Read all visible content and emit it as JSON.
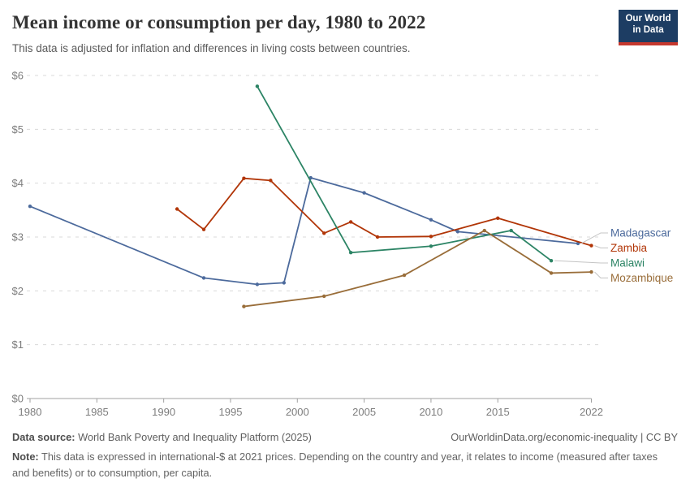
{
  "header": {
    "title": "Mean income or consumption per day, 1980 to 2022",
    "subtitle": "This data is adjusted for inflation and differences in living costs between countries.",
    "logo": {
      "line1": "Our World",
      "line2": "in Data",
      "bg_color": "#1d3d63",
      "bar_color": "#c5382e"
    }
  },
  "chart_data": {
    "type": "line",
    "title": "Mean income or consumption per day, 1980 to 2022",
    "xlabel": "",
    "ylabel": "",
    "xlim": [
      1980,
      2022
    ],
    "ylim": [
      0,
      6
    ],
    "x_ticks": [
      1980,
      1985,
      1990,
      1995,
      2000,
      2005,
      2010,
      2015,
      2022
    ],
    "y_ticks": [
      0,
      1,
      2,
      3,
      4,
      5,
      6
    ],
    "y_tick_prefix": "$",
    "grid": "horizontal-dashed",
    "legend_position": "right-of-line-ends",
    "grid_color": "#dadada",
    "axis_color": "#a1a1a1",
    "tick_label_color": "#7d7d7d",
    "series": [
      {
        "name": "Madagascar",
        "color": "#4C6A9C",
        "points": [
          [
            1980,
            3.57
          ],
          [
            1993,
            2.24
          ],
          [
            1997,
            2.12
          ],
          [
            1999,
            2.15
          ],
          [
            2001,
            4.1
          ],
          [
            2005,
            3.82
          ],
          [
            2010,
            3.32
          ],
          [
            2012,
            3.1
          ],
          [
            2021,
            2.88
          ]
        ]
      },
      {
        "name": "Zambia",
        "color": "#B13507",
        "points": [
          [
            1991,
            3.52
          ],
          [
            1993,
            3.14
          ],
          [
            1996,
            4.09
          ],
          [
            1998,
            4.05
          ],
          [
            2002,
            3.07
          ],
          [
            2004,
            3.28
          ],
          [
            2006,
            3.0
          ],
          [
            2010,
            3.01
          ],
          [
            2015,
            3.35
          ],
          [
            2022,
            2.84
          ]
        ]
      },
      {
        "name": "Malawi",
        "color": "#2C8465",
        "points": [
          [
            1997,
            5.8
          ],
          [
            2004,
            2.71
          ],
          [
            2010,
            2.83
          ],
          [
            2016,
            3.12
          ],
          [
            2019,
            2.56
          ]
        ]
      },
      {
        "name": "Mozambique",
        "color": "#996D39",
        "points": [
          [
            1996,
            1.71
          ],
          [
            2002,
            1.9
          ],
          [
            2008,
            2.29
          ],
          [
            2014,
            3.12
          ],
          [
            2019,
            2.33
          ],
          [
            2022,
            2.35
          ]
        ]
      }
    ]
  },
  "footer": {
    "source_label": "Data source:",
    "source_text": " World Bank Poverty and Inequality Platform (2025)",
    "credit": "OurWorldinData.org/economic-inequality | CC BY",
    "note_label": "Note:",
    "note_text": " This data is expressed in international-$ at 2021 prices. Depending on the country and year, it relates to income (measured after taxes and benefits) or to consumption, per capita."
  }
}
